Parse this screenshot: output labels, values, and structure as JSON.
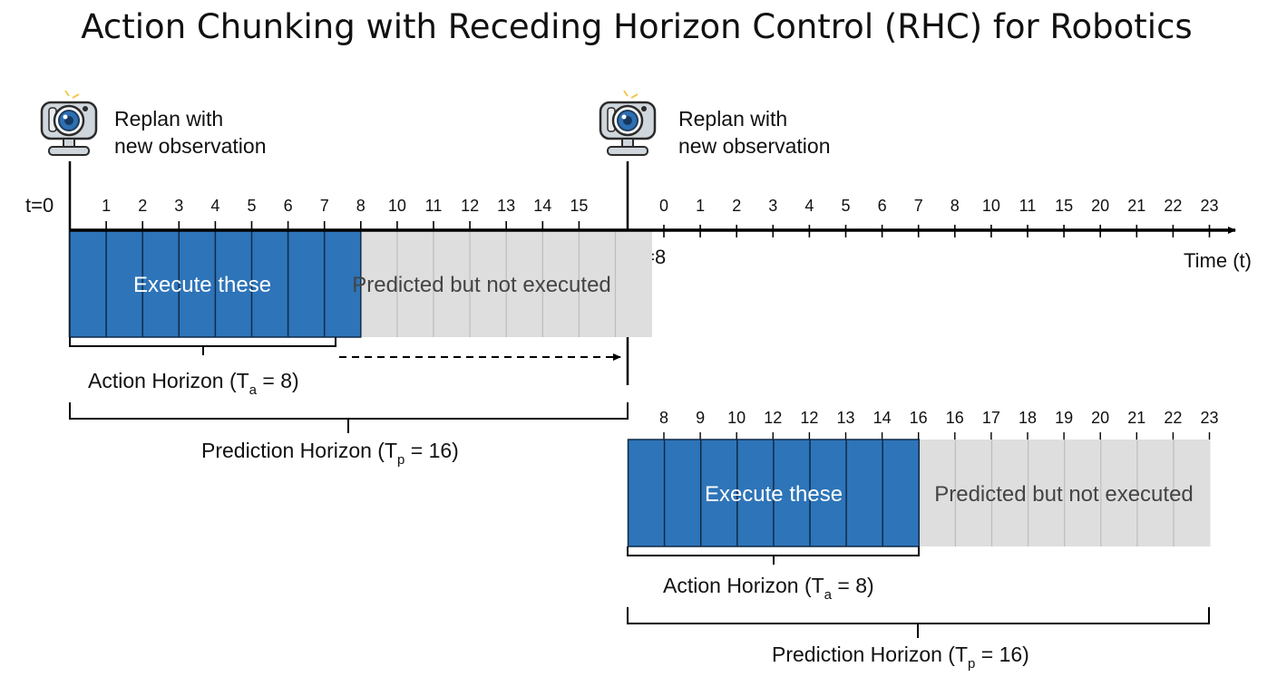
{
  "title": "Action Chunking with Receding Horizon Control (RHC) for Robotics",
  "colors": {
    "execute": "#2e74b8",
    "predicted": "#dedede",
    "axis": "#000000"
  },
  "camera_icon": "camera-icon",
  "replan_label": {
    "line1": "Replan with",
    "line2": "new observation"
  },
  "t0_label": "t=0",
  "t8_label": "t=8",
  "time_label": "Time (t)",
  "axis_ticks_left": [
    "1",
    "2",
    "3",
    "4",
    "5",
    "6",
    "7",
    "8",
    "10",
    "11",
    "12",
    "13",
    "14",
    "15"
  ],
  "axis_ticks_right": [
    "0",
    "1",
    "2",
    "3",
    "4",
    "5",
    "6",
    "7",
    "8",
    "10",
    "11",
    "15",
    "20",
    "21",
    "22",
    "23"
  ],
  "chunk1": {
    "execute_label": "Execute these",
    "predicted_label": "Predicted but not executed",
    "action_horizon": {
      "prefix": "Action Horizon (T",
      "sub": "a",
      "suffix": " = 8)"
    },
    "prediction_horizon": {
      "prefix": "Prediction Horizon (T",
      "sub": "p",
      "suffix": " = 16)"
    }
  },
  "chunk2": {
    "tick_labels": [
      "8",
      "9",
      "10",
      "12",
      "12",
      "13",
      "14",
      "16",
      "16",
      "17",
      "18",
      "19",
      "20",
      "21",
      "22",
      "23"
    ],
    "execute_label": "Execute these",
    "predicted_label": "Predicted but not executed",
    "action_horizon": {
      "prefix": "Action Horizon (T",
      "sub": "a",
      "suffix": " = 8)"
    },
    "prediction_horizon": {
      "prefix": "Prediction Horizon (T",
      "sub": "p",
      "suffix": " = 16)"
    }
  }
}
